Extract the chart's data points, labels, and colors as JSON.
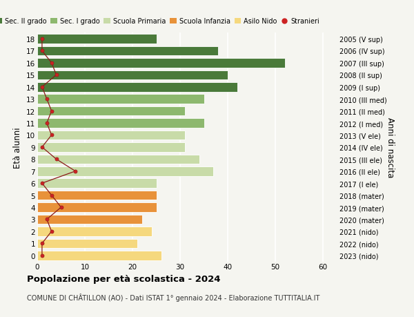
{
  "ages": [
    0,
    1,
    2,
    3,
    4,
    5,
    6,
    7,
    8,
    9,
    10,
    11,
    12,
    13,
    14,
    15,
    16,
    17,
    18
  ],
  "bar_values": [
    26,
    21,
    24,
    22,
    25,
    25,
    25,
    37,
    34,
    31,
    31,
    35,
    31,
    35,
    42,
    40,
    52,
    38,
    25
  ],
  "bar_colors": [
    "#f5d87e",
    "#f5d87e",
    "#f5d87e",
    "#e8923a",
    "#e8923a",
    "#e8923a",
    "#c8dba8",
    "#c8dba8",
    "#c8dba8",
    "#c8dba8",
    "#c8dba8",
    "#8db86e",
    "#8db86e",
    "#8db86e",
    "#4a7a3a",
    "#4a7a3a",
    "#4a7a3a",
    "#4a7a3a",
    "#4a7a3a"
  ],
  "stranieri_values": [
    1,
    1,
    3,
    2,
    5,
    3,
    1,
    8,
    4,
    1,
    3,
    2,
    3,
    2,
    1,
    4,
    3,
    1,
    1
  ],
  "right_labels": [
    "2023 (nido)",
    "2022 (nido)",
    "2021 (nido)",
    "2020 (mater)",
    "2019 (mater)",
    "2018 (mater)",
    "2017 (I ele)",
    "2016 (II ele)",
    "2015 (III ele)",
    "2014 (IV ele)",
    "2013 (V ele)",
    "2012 (I med)",
    "2011 (II med)",
    "2010 (III med)",
    "2009 (I sup)",
    "2008 (II sup)",
    "2007 (III sup)",
    "2006 (IV sup)",
    "2005 (V sup)"
  ],
  "legend_labels": [
    "Sec. II grado",
    "Sec. I grado",
    "Scuola Primaria",
    "Scuola Infanzia",
    "Asilo Nido",
    "Stranieri"
  ],
  "legend_colors": [
    "#4a7a3a",
    "#8db86e",
    "#c8dba8",
    "#e8923a",
    "#f5d87e",
    "#cc2222"
  ],
  "xlabel_values": [
    0,
    10,
    20,
    30,
    40,
    50,
    60
  ],
  "xlim": [
    0,
    63
  ],
  "title": "Popolazione per età scolastica - 2024",
  "subtitle": "COMUNE DI CHÂTILLON (AO) - Dati ISTAT 1° gennaio 2024 - Elaborazione TUTTITALIA.IT",
  "ylabel": "Età alunni",
  "right_ylabel": "Anni di nascita",
  "background_color": "#f5f5f0",
  "grid_color": "#ffffff"
}
